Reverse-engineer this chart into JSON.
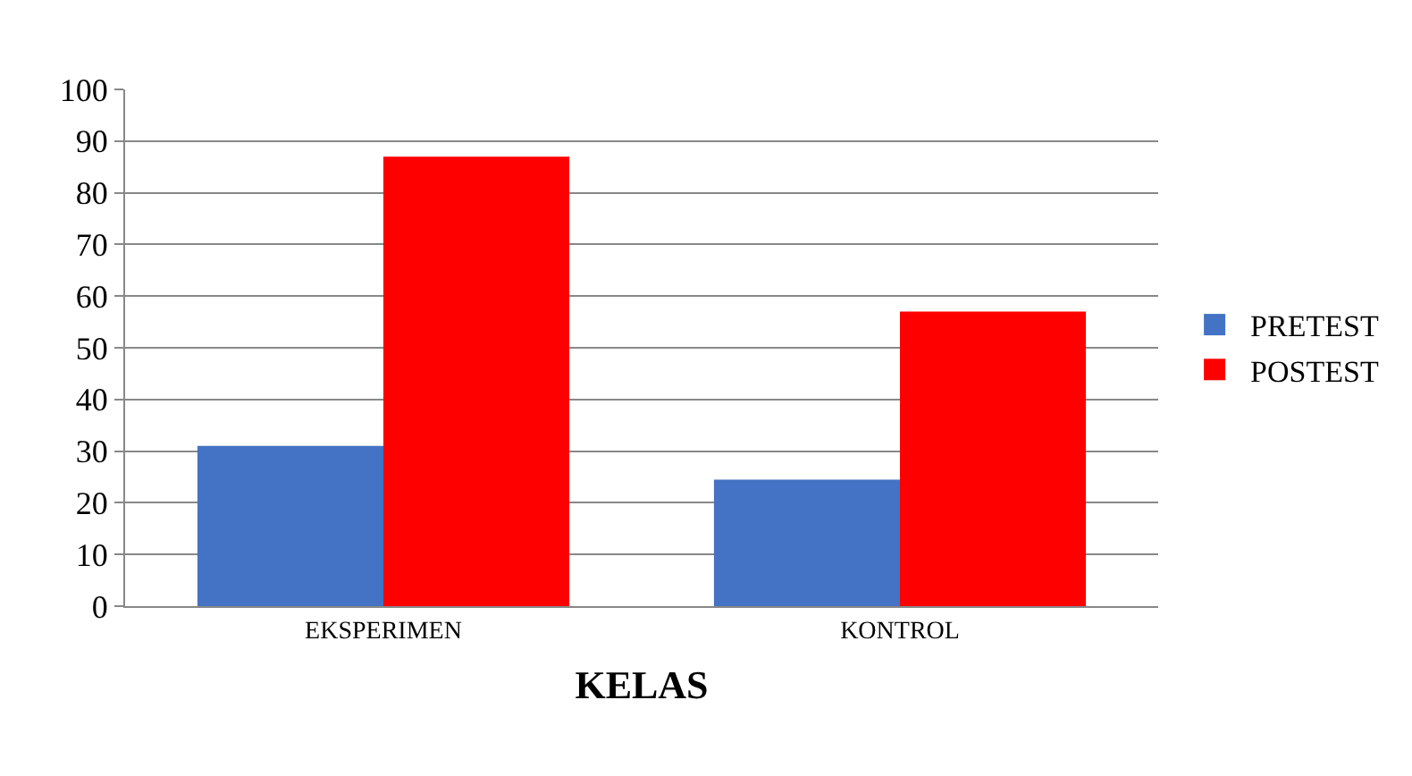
{
  "chart_data": {
    "type": "bar",
    "xlabel": "KELAS",
    "categories": [
      "EKSPERIMEN",
      "KONTROL"
    ],
    "series": [
      {
        "name": "PRETEST",
        "color": "#4472c4",
        "values": [
          31,
          24.5
        ]
      },
      {
        "name": "POSTEST",
        "color": "#ff0000",
        "values": [
          87,
          57
        ]
      }
    ],
    "ylim": [
      0,
      100
    ],
    "yticks": [
      0,
      10,
      20,
      30,
      40,
      50,
      60,
      70,
      80,
      90,
      100
    ],
    "grid": "y",
    "legend": "right"
  }
}
